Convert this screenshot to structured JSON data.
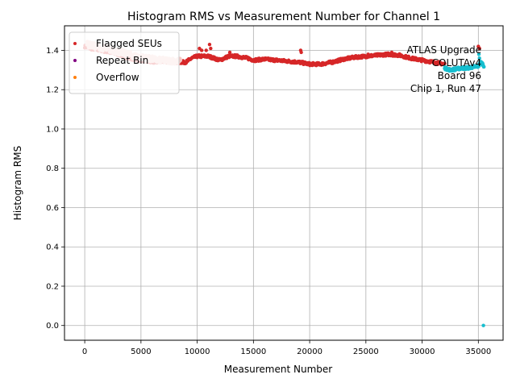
{
  "chart_data": {
    "type": "scatter",
    "title": "Histogram RMS vs Measurement Number for Channel 1",
    "xlabel": "Measurement Number",
    "ylabel": "Histogram RMS",
    "xlim": [
      -1800,
      37200
    ],
    "ylim": [
      -0.075,
      1.525
    ],
    "xticks": [
      0,
      5000,
      10000,
      15000,
      20000,
      25000,
      30000,
      35000
    ],
    "yticks": [
      0.0,
      0.2,
      0.4,
      0.6,
      0.8,
      1.0,
      1.2,
      1.4
    ],
    "ytick_labels": [
      "0.0",
      "0.2",
      "0.4",
      "0.6",
      "0.8",
      "1.0",
      "1.2",
      "1.4"
    ],
    "grid": true,
    "legend_position": "top-left",
    "legend": [
      {
        "label": "Flagged SEUs",
        "color": "#d62728"
      },
      {
        "label": "Repeat Bin",
        "color": "#800080"
      },
      {
        "label": "Overflow",
        "color": "#ff7f0e"
      }
    ],
    "annotation": [
      "ATLAS Upgrade",
      "COLUTAv4",
      "Board 96",
      "Chip 1, Run 47"
    ],
    "colors": {
      "main_series": "#d62728",
      "early_band": "#f4c7c3",
      "end_series": "#17becf"
    },
    "series": [
      {
        "color": "#d62728",
        "profile": [
          [
            0,
            1.42
          ],
          [
            500,
            1.41
          ],
          [
            1500,
            1.4
          ],
          [
            3000,
            1.38
          ],
          [
            4000,
            1.36
          ],
          [
            5000,
            1.35
          ],
          [
            6000,
            1.34
          ],
          [
            7000,
            1.345
          ],
          [
            8000,
            1.34
          ],
          [
            9000,
            1.34
          ],
          [
            9500,
            1.36
          ],
          [
            10000,
            1.37
          ],
          [
            11000,
            1.37
          ],
          [
            12000,
            1.35
          ],
          [
            12800,
            1.37
          ],
          [
            13500,
            1.37
          ],
          [
            14500,
            1.36
          ],
          [
            15000,
            1.35
          ],
          [
            16000,
            1.355
          ],
          [
            17000,
            1.35
          ],
          [
            18000,
            1.345
          ],
          [
            19000,
            1.34
          ],
          [
            20000,
            1.33
          ],
          [
            21000,
            1.33
          ],
          [
            22000,
            1.34
          ],
          [
            23000,
            1.355
          ],
          [
            24000,
            1.365
          ],
          [
            25000,
            1.37
          ],
          [
            26000,
            1.375
          ],
          [
            27000,
            1.38
          ],
          [
            28000,
            1.375
          ],
          [
            29000,
            1.36
          ],
          [
            30000,
            1.35
          ],
          [
            31000,
            1.34
          ],
          [
            32000,
            1.33
          ]
        ],
        "spikes": [
          [
            10200,
            1.41
          ],
          [
            10400,
            1.4
          ],
          [
            10800,
            1.4
          ],
          [
            11100,
            1.43
          ],
          [
            11200,
            1.41
          ],
          [
            12900,
            1.39
          ],
          [
            19200,
            1.4
          ],
          [
            19250,
            1.39
          ],
          [
            25200,
            1.38
          ],
          [
            27300,
            1.39
          ],
          [
            35000,
            1.42
          ],
          [
            35100,
            1.41
          ]
        ]
      },
      {
        "color": "#17becf",
        "profile": [
          [
            32000,
            1.31
          ],
          [
            32500,
            1.3
          ],
          [
            33000,
            1.305
          ],
          [
            33500,
            1.31
          ],
          [
            34000,
            1.31
          ],
          [
            34500,
            1.315
          ],
          [
            35000,
            1.32
          ],
          [
            35200,
            1.34
          ],
          [
            35400,
            1.33
          ],
          [
            35500,
            1.32
          ]
        ],
        "spikes": [
          [
            35050,
            1.38
          ],
          [
            35100,
            1.36
          ],
          [
            35450,
            0.0
          ]
        ]
      }
    ]
  }
}
